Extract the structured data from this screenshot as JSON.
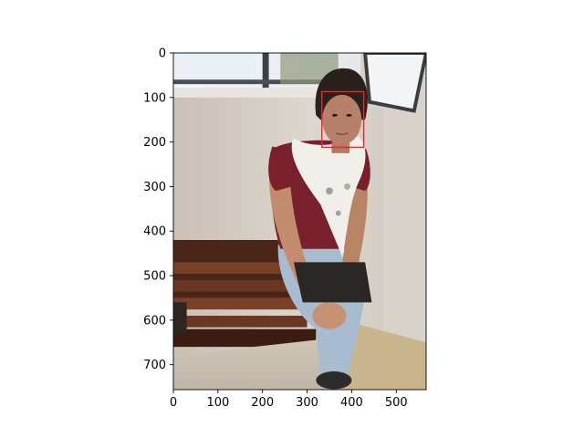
{
  "chart_data": {
    "type": "image",
    "title": "",
    "xlabel": "",
    "ylabel": "",
    "xlim": [
      0,
      567
    ],
    "ylim": [
      756,
      0
    ],
    "image_size": {
      "width": 567,
      "height": 756
    },
    "x_ticks": [
      {
        "value": 0,
        "label": "0"
      },
      {
        "value": 100,
        "label": "100"
      },
      {
        "value": 200,
        "label": "200"
      },
      {
        "value": 300,
        "label": "300"
      },
      {
        "value": 400,
        "label": "400"
      },
      {
        "value": 500,
        "label": "500"
      }
    ],
    "y_ticks": [
      {
        "value": 0,
        "label": "0"
      },
      {
        "value": 100,
        "label": "100"
      },
      {
        "value": 200,
        "label": "200"
      },
      {
        "value": 300,
        "label": "300"
      },
      {
        "value": 400,
        "label": "400"
      },
      {
        "value": 500,
        "label": "500"
      },
      {
        "value": 600,
        "label": "600"
      },
      {
        "value": 700,
        "label": "700"
      }
    ],
    "annotations": [
      {
        "type": "rectangle",
        "x0": 333,
        "y0": 87,
        "x1": 427,
        "y1": 212,
        "color": "#e8262b"
      }
    ],
    "grid": false
  }
}
